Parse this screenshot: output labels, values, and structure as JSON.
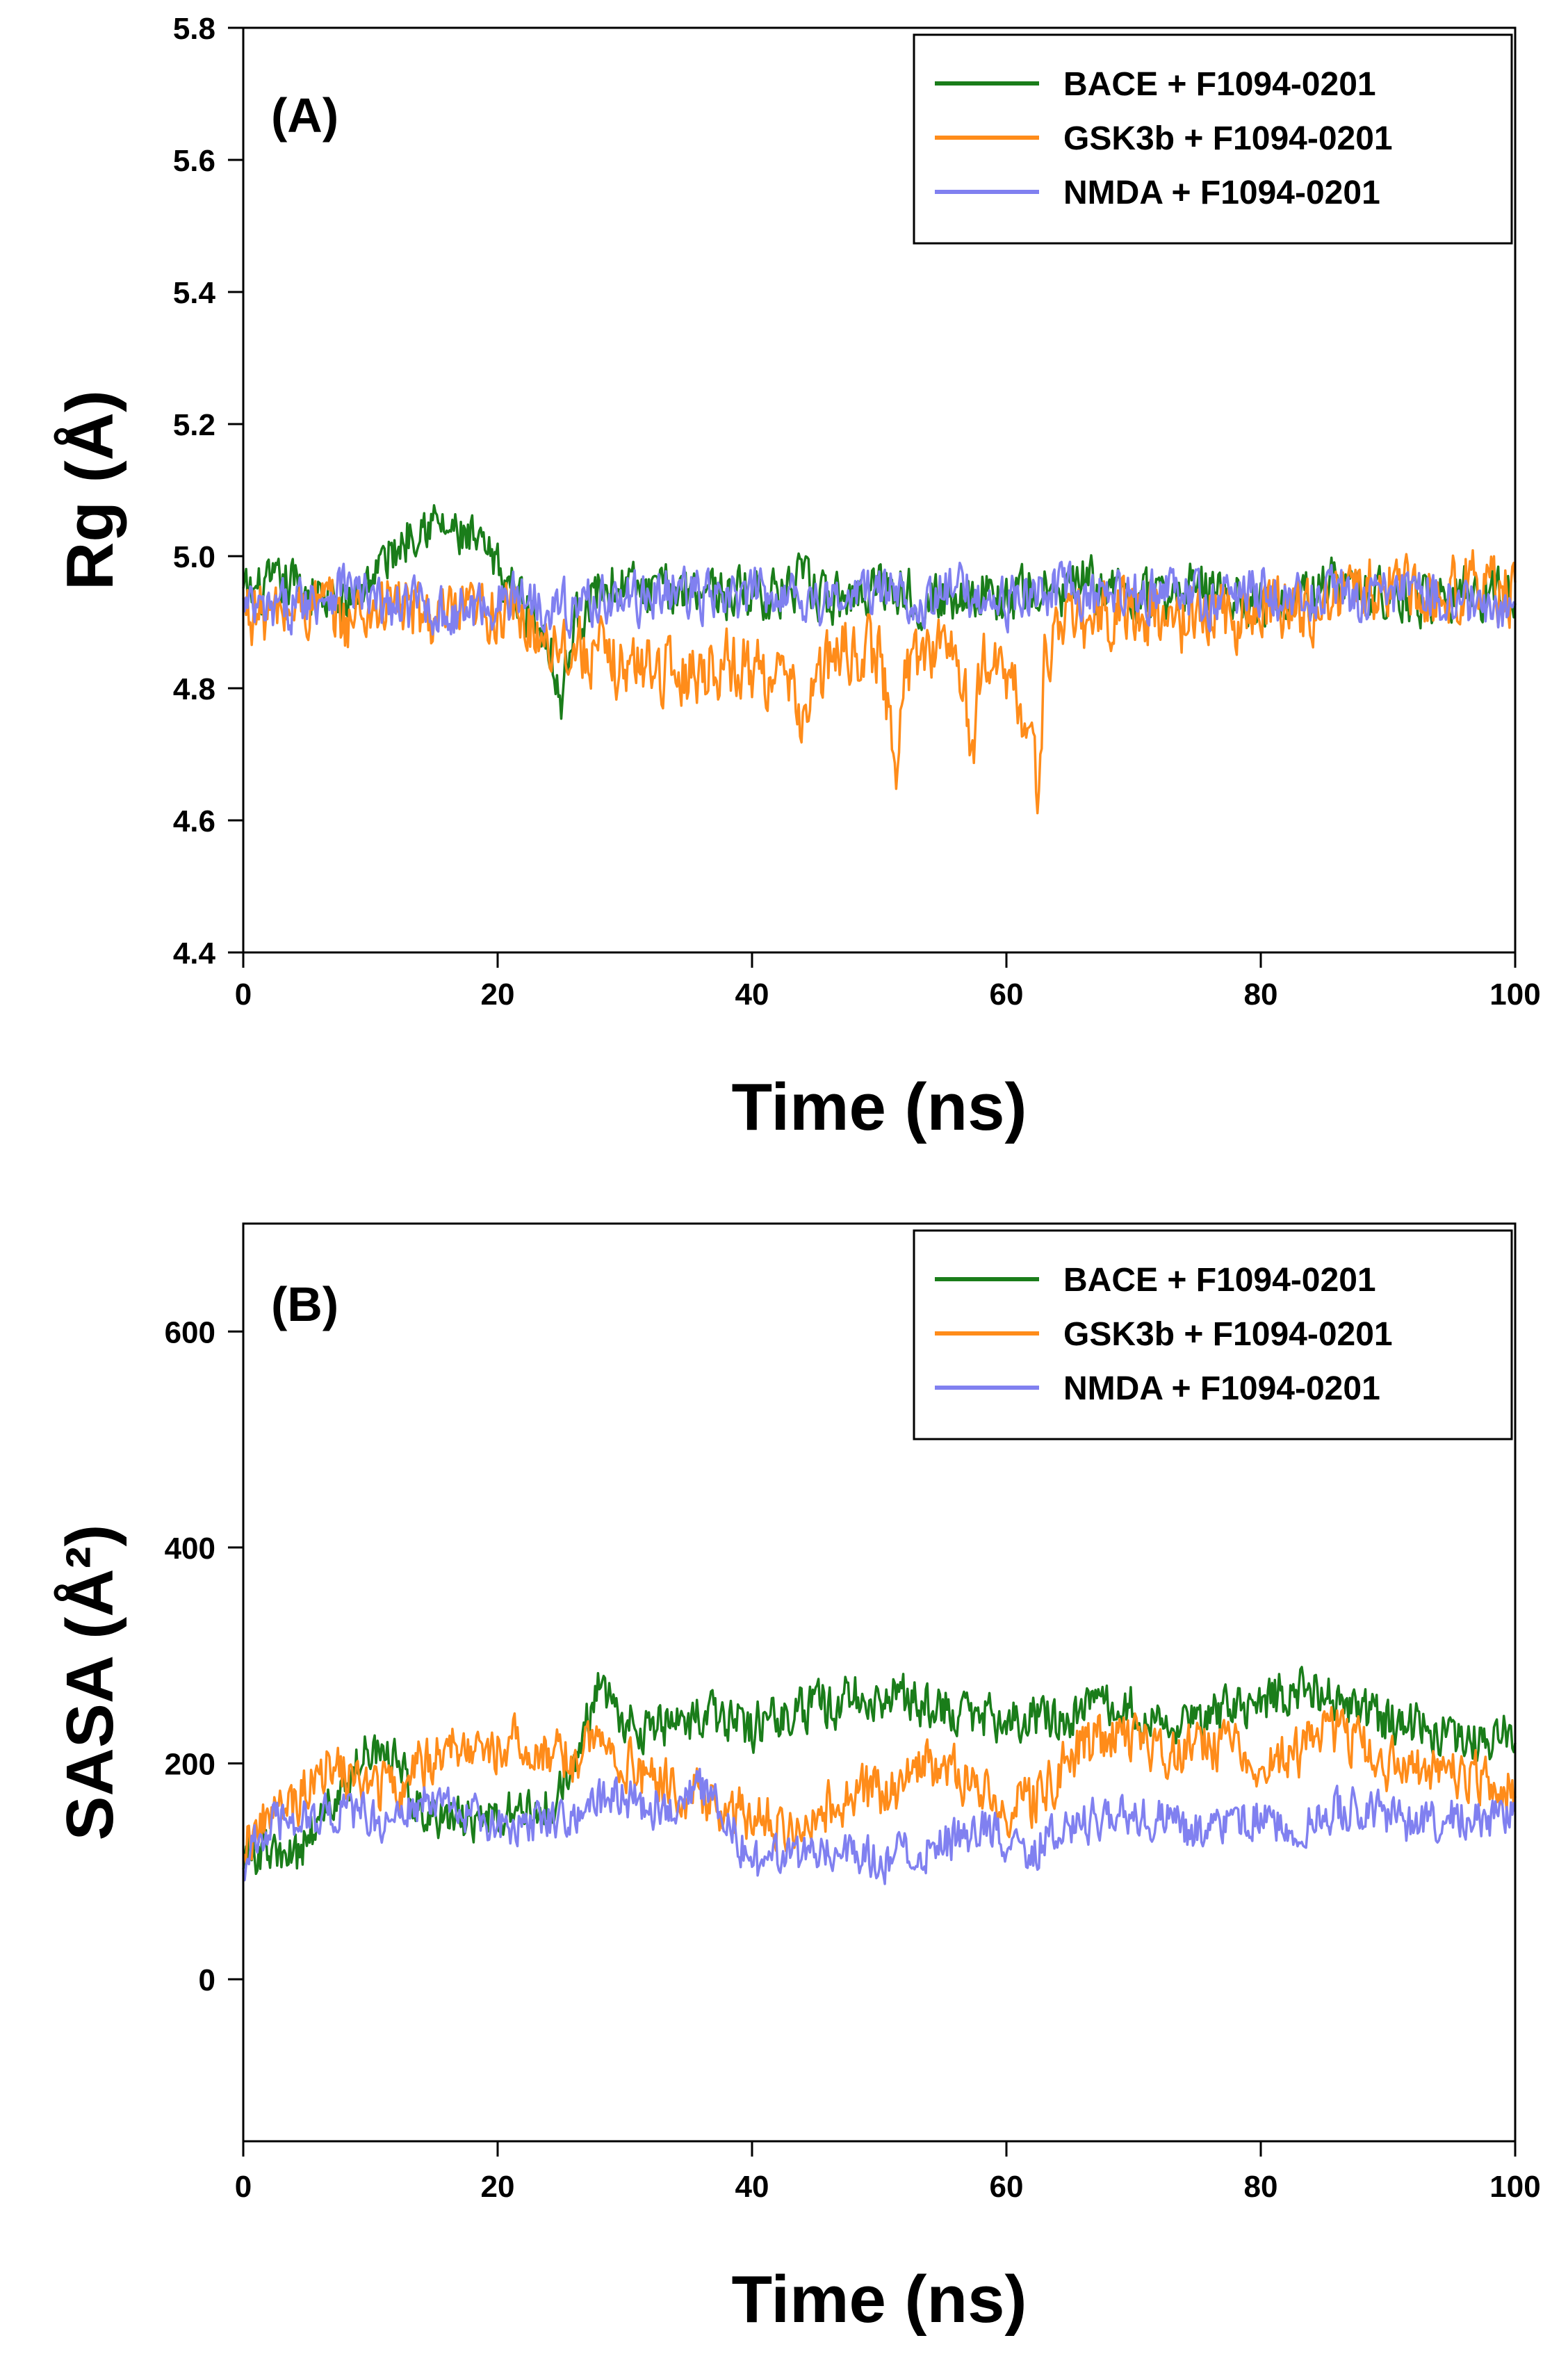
{
  "chart_data": [
    {
      "type": "line",
      "panel_label": "(A)",
      "xlabel": "Time (ns)",
      "ylabel": "Rg (Å)",
      "xlim": [
        0,
        100
      ],
      "ylim": [
        4.4,
        5.8
      ],
      "xticks": [
        0,
        20,
        40,
        60,
        80,
        100
      ],
      "xtick_labels": [
        "0",
        "20",
        "40",
        "60",
        "80",
        "100"
      ],
      "yticks": [
        4.4,
        4.6,
        4.8,
        5.0,
        5.2,
        5.4,
        5.6,
        5.8
      ],
      "ytick_labels": [
        "4.4",
        "4.6",
        "4.8",
        "5.0",
        "5.2",
        "5.4",
        "5.6",
        "5.8"
      ],
      "legend_position": "top-right",
      "series": [
        {
          "name": "BACE + F1094-0201",
          "color": "#1a7d1a",
          "x": [
            0,
            2,
            4,
            6,
            8,
            10,
            12,
            14,
            16,
            18,
            20,
            22,
            24,
            25,
            26,
            28,
            30,
            32,
            34,
            36,
            38,
            40,
            42,
            44,
            46,
            48,
            50,
            52,
            54,
            56,
            58,
            60,
            62,
            64,
            66,
            68,
            70,
            72,
            74,
            76,
            78,
            80,
            82,
            84,
            86,
            88,
            90,
            92,
            94,
            96,
            98,
            100
          ],
          "values": [
            4.94,
            4.95,
            4.96,
            4.94,
            4.92,
            4.97,
            5.01,
            5.06,
            5.04,
            5.02,
            4.98,
            4.93,
            4.88,
            4.78,
            4.9,
            4.95,
            4.96,
            4.94,
            4.95,
            4.96,
            4.94,
            4.95,
            4.94,
            4.96,
            4.93,
            4.94,
            4.96,
            4.95,
            4.93,
            4.94,
            4.95,
            4.93,
            4.95,
            4.94,
            4.96,
            4.95,
            4.94,
            4.93,
            4.95,
            4.96,
            4.94,
            4.93,
            4.95,
            4.94,
            4.96,
            4.94,
            4.95,
            4.93,
            4.94,
            4.95,
            4.94,
            4.95
          ],
          "noise": 0.035
        },
        {
          "name": "GSK3b + F1094-0201",
          "color": "#ff8c1a",
          "x": [
            0,
            2,
            4,
            6,
            8,
            10,
            12,
            14,
            16,
            18,
            20,
            22,
            24,
            26,
            28,
            30,
            32,
            34,
            36,
            38,
            40,
            42,
            44,
            46,
            48,
            50,
            51.5,
            52,
            54,
            56,
            57.5,
            58,
            60,
            62,
            62.5,
            63,
            64,
            66,
            68,
            70,
            72,
            74,
            76,
            78,
            80,
            82,
            84,
            86,
            88,
            90,
            92,
            94,
            96,
            98,
            100
          ],
          "values": [
            4.92,
            4.91,
            4.92,
            4.93,
            4.9,
            4.92,
            4.93,
            4.91,
            4.9,
            4.91,
            4.92,
            4.9,
            4.88,
            4.86,
            4.85,
            4.83,
            4.84,
            4.82,
            4.83,
            4.84,
            4.83,
            4.82,
            4.76,
            4.84,
            4.86,
            4.85,
            4.68,
            4.82,
            4.87,
            4.86,
            4.7,
            4.84,
            4.83,
            4.72,
            4.62,
            4.85,
            4.89,
            4.9,
            4.91,
            4.92,
            4.91,
            4.9,
            4.92,
            4.91,
            4.92,
            4.93,
            4.92,
            4.94,
            4.95,
            4.96,
            4.95,
            4.94,
            4.96,
            4.95,
            4.94
          ],
          "noise": 0.045
        },
        {
          "name": "NMDA + F1094-0201",
          "color": "#8080f0",
          "x": [
            0,
            2,
            4,
            6,
            8,
            10,
            12,
            14,
            16,
            18,
            20,
            22,
            24,
            26,
            28,
            30,
            32,
            34,
            36,
            38,
            40,
            42,
            44,
            46,
            48,
            50,
            52,
            54,
            56,
            58,
            60,
            62,
            64,
            66,
            68,
            70,
            72,
            74,
            76,
            78,
            80,
            82,
            84,
            86,
            88,
            90,
            92,
            94,
            96,
            98,
            100
          ],
          "values": [
            4.92,
            4.91,
            4.93,
            4.94,
            4.96,
            4.93,
            4.92,
            4.93,
            4.91,
            4.92,
            4.93,
            4.94,
            4.93,
            4.92,
            4.94,
            4.93,
            4.94,
            4.95,
            4.94,
            4.93,
            4.94,
            4.95,
            4.94,
            4.93,
            4.94,
            4.95,
            4.94,
            4.93,
            4.95,
            4.94,
            4.93,
            4.94,
            4.95,
            4.94,
            4.93,
            4.94,
            4.95,
            4.94,
            4.93,
            4.94,
            4.95,
            4.93,
            4.94,
            4.95,
            4.93,
            4.94,
            4.95,
            4.94,
            4.93,
            4.92,
            4.91
          ],
          "noise": 0.035
        }
      ]
    },
    {
      "type": "line",
      "panel_label": "(B)",
      "xlabel": "Time (ns)",
      "ylabel": "SASA (Å²)",
      "xlim": [
        0,
        100
      ],
      "ylim": [
        -150,
        700
      ],
      "xticks": [
        0,
        20,
        40,
        60,
        80,
        100
      ],
      "xtick_labels": [
        "0",
        "20",
        "40",
        "60",
        "80",
        "100"
      ],
      "yticks": [
        0,
        200,
        400,
        600
      ],
      "ytick_labels": [
        "0",
        "200",
        "400",
        "600"
      ],
      "legend_position": "top-right",
      "series": [
        {
          "name": "BACE + F1094-0201",
          "color": "#1a7d1a",
          "x": [
            0,
            2,
            4,
            6,
            8,
            10,
            12,
            14,
            16,
            18,
            20,
            22,
            24,
            26,
            27.5,
            28,
            30,
            32,
            34,
            36,
            38,
            40,
            42,
            44,
            46,
            48,
            50,
            52,
            54,
            56,
            58,
            60,
            62,
            64,
            66,
            68,
            70,
            72,
            74,
            76,
            78,
            80,
            82,
            84,
            86,
            88,
            90,
            92,
            94,
            96,
            98,
            100
          ],
          "values": [
            120,
            115,
            110,
            150,
            180,
            220,
            200,
            160,
            150,
            145,
            150,
            155,
            160,
            190,
            260,
            280,
            240,
            230,
            235,
            240,
            240,
            235,
            245,
            250,
            255,
            260,
            265,
            260,
            255,
            250,
            245,
            240,
            245,
            240,
            250,
            255,
            250,
            245,
            240,
            245,
            250,
            260,
            265,
            270,
            255,
            245,
            240,
            235,
            230,
            225,
            220,
            230
          ],
          "noise": 20
        },
        {
          "name": "GSK3b + F1094-0201",
          "color": "#ff8c1a",
          "x": [
            0,
            2,
            4,
            6,
            8,
            10,
            12,
            14,
            16,
            18,
            20,
            22,
            24,
            26,
            28,
            30,
            32,
            34,
            36,
            38,
            40,
            42,
            44,
            46,
            48,
            50,
            52,
            54,
            56,
            58,
            60,
            62,
            64,
            66,
            68,
            70,
            72,
            74,
            76,
            78,
            80,
            82,
            84,
            86,
            88,
            90,
            92,
            94,
            96,
            98,
            100
          ],
          "values": [
            130,
            150,
            160,
            200,
            190,
            175,
            180,
            200,
            210,
            220,
            215,
            220,
            210,
            200,
            230,
            200,
            185,
            175,
            170,
            160,
            150,
            145,
            150,
            160,
            170,
            175,
            180,
            200,
            190,
            170,
            160,
            165,
            190,
            215,
            225,
            220,
            215,
            210,
            220,
            210,
            200,
            205,
            220,
            230,
            215,
            200,
            195,
            200,
            190,
            185,
            175
          ],
          "noise": 22
        },
        {
          "name": "NMDA + F1094-0201",
          "color": "#8080f0",
          "x": [
            0,
            2,
            4,
            6,
            8,
            10,
            12,
            14,
            16,
            18,
            20,
            22,
            24,
            26,
            28,
            30,
            32,
            34,
            36,
            38,
            40,
            42,
            44,
            46,
            48,
            50,
            52,
            54,
            56,
            58,
            60,
            62,
            64,
            66,
            68,
            70,
            72,
            74,
            76,
            78,
            80,
            82,
            84,
            86,
            88,
            90,
            92,
            94,
            96,
            98,
            100
          ],
          "values": [
            110,
            140,
            150,
            150,
            155,
            150,
            145,
            165,
            160,
            150,
            140,
            145,
            150,
            155,
            165,
            170,
            160,
            165,
            175,
            150,
            105,
            110,
            115,
            125,
            120,
            110,
            115,
            120,
            130,
            140,
            130,
            120,
            135,
            145,
            150,
            155,
            150,
            140,
            135,
            145,
            150,
            140,
            145,
            155,
            160,
            150,
            145,
            150,
            155,
            150,
            150
          ],
          "noise": 18
        }
      ]
    }
  ]
}
